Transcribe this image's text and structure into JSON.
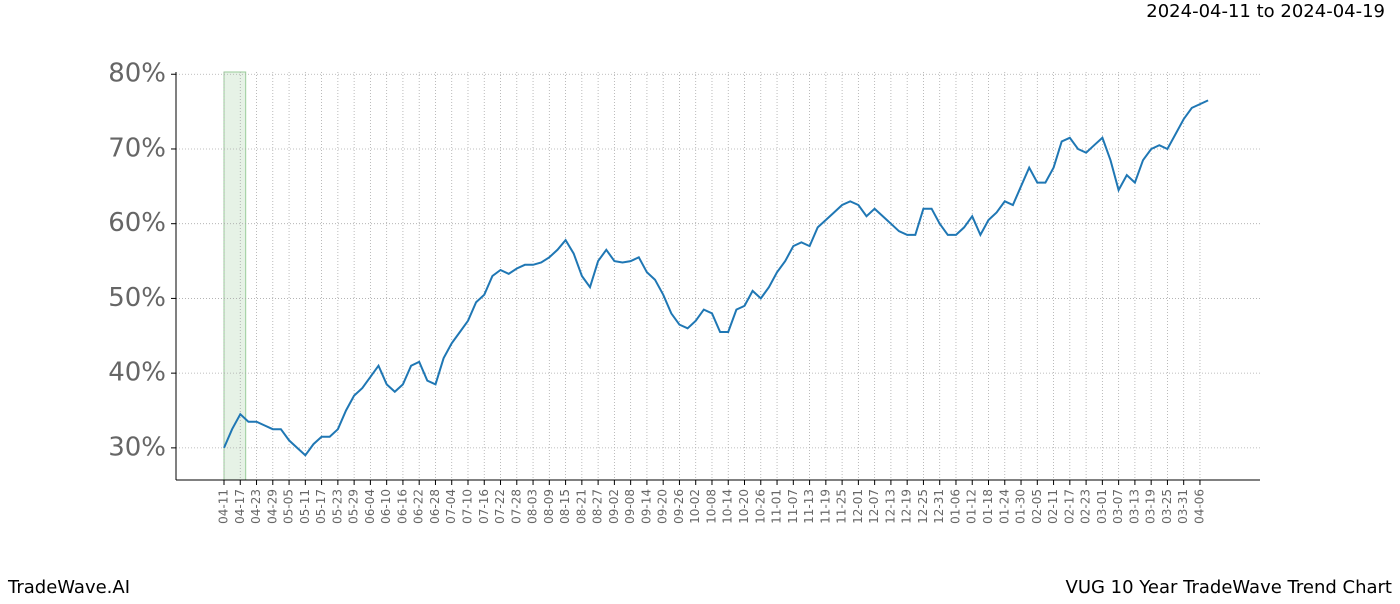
{
  "chart_data": {
    "type": "line",
    "title": "VUG 10 Year TradeWave Trend Chart",
    "subtitle": "2024-04-11 to 2024-04-19",
    "brand": "TradeWave.AI",
    "x": [
      "04-11",
      "04-14",
      "04-17",
      "04-20",
      "04-23",
      "04-26",
      "04-29",
      "05-02",
      "05-05",
      "05-08",
      "05-11",
      "05-14",
      "05-17",
      "05-20",
      "05-23",
      "05-26",
      "05-29",
      "06-01",
      "06-04",
      "06-07",
      "06-10",
      "06-13",
      "06-16",
      "06-19",
      "06-22",
      "06-25",
      "06-28",
      "07-01",
      "07-04",
      "07-07",
      "07-10",
      "07-13",
      "07-16",
      "07-19",
      "07-22",
      "07-25",
      "07-28",
      "07-31",
      "08-03",
      "08-06",
      "08-09",
      "08-12",
      "08-15",
      "08-18",
      "08-21",
      "08-24",
      "08-27",
      "08-30",
      "09-02",
      "09-05",
      "09-08",
      "09-11",
      "09-14",
      "09-17",
      "09-20",
      "09-23",
      "09-26",
      "09-29",
      "10-02",
      "10-05",
      "10-08",
      "10-11",
      "10-14",
      "10-17",
      "10-20",
      "10-23",
      "10-26",
      "10-29",
      "11-01",
      "11-04",
      "11-07",
      "11-10",
      "11-13",
      "11-16",
      "11-19",
      "11-22",
      "11-25",
      "11-28",
      "12-01",
      "12-04",
      "12-07",
      "12-10",
      "12-13",
      "12-16",
      "12-19",
      "12-22",
      "12-25",
      "12-28",
      "12-31",
      "01-03",
      "01-06",
      "01-09",
      "01-12",
      "01-15",
      "01-18",
      "01-21",
      "01-24",
      "01-27",
      "01-30",
      "02-02",
      "02-05",
      "02-08",
      "02-11",
      "02-14",
      "02-17",
      "02-20",
      "02-23",
      "02-26",
      "03-01",
      "03-04",
      "03-07",
      "03-10",
      "03-13",
      "03-16",
      "03-19",
      "03-22",
      "03-25",
      "03-28",
      "03-31",
      "04-03",
      "04-06",
      "04-09"
    ],
    "series": [
      {
        "color": "#1f77b4",
        "values": [
          30,
          32.5,
          34.5,
          33.5,
          33.5,
          33,
          32.5,
          32.5,
          31,
          30,
          29,
          30.5,
          31.5,
          31.5,
          32.5,
          35,
          37,
          38,
          39.5,
          41,
          38.5,
          37.5,
          38.5,
          41,
          41.5,
          39,
          38.5,
          42,
          44,
          45.5,
          47,
          49.5,
          50.5,
          53,
          53.8,
          53.3,
          54,
          54.5,
          54.5,
          54.8,
          55.5,
          56.5,
          57.8,
          56,
          53,
          51.5,
          55,
          56.5,
          55,
          54.8,
          55,
          55.5,
          53.5,
          52.5,
          50.5,
          48,
          46.5,
          46,
          47,
          48.5,
          48,
          45.5,
          45.5,
          48.5,
          49,
          51,
          50,
          51.5,
          53.5,
          55,
          57,
          57.5,
          57,
          59.5,
          60.5,
          61.5,
          62.5,
          63,
          62.5,
          61,
          62,
          61,
          60,
          59,
          58.5,
          58.5,
          62,
          62,
          60,
          58.5,
          58.5,
          59.5,
          61,
          58.5,
          60.5,
          61.5,
          63,
          62.5,
          65,
          67.5,
          65.5,
          65.5,
          67.5,
          71,
          71.5,
          70,
          69.5,
          70.5,
          71.5,
          68.5,
          64.5,
          66.5,
          65.5,
          68.5,
          70,
          70.5,
          70,
          72,
          74,
          75.5,
          76,
          76.5
        ]
      }
    ],
    "highlight": {
      "start": "04-11",
      "end": "04-19",
      "color": "#e6f2e6"
    },
    "ylim": [
      25.7,
      80.3
    ],
    "yticks": [
      {
        "value": 30,
        "label": "30%"
      },
      {
        "value": 40,
        "label": "40%"
      },
      {
        "value": 50,
        "label": "50%"
      },
      {
        "value": 60,
        "label": "60%"
      },
      {
        "value": 70,
        "label": "70%"
      },
      {
        "value": 80,
        "label": "80%"
      }
    ],
    "xticks": [
      "04-11",
      "04-17",
      "04-23",
      "04-29",
      "05-05",
      "05-11",
      "05-17",
      "05-23",
      "05-29",
      "06-04",
      "06-10",
      "06-16",
      "06-22",
      "06-28",
      "07-04",
      "07-10",
      "07-16",
      "07-22",
      "07-28",
      "08-03",
      "08-09",
      "08-15",
      "08-21",
      "08-27",
      "09-02",
      "09-08",
      "09-14",
      "09-20",
      "09-26",
      "10-02",
      "10-08",
      "10-14",
      "10-20",
      "10-26",
      "11-01",
      "11-07",
      "11-13",
      "11-19",
      "11-25",
      "12-01",
      "12-07",
      "12-13",
      "12-19",
      "12-25",
      "12-31",
      "01-06",
      "01-12",
      "01-18",
      "01-24",
      "01-30",
      "02-05",
      "02-11",
      "02-17",
      "02-23",
      "03-01",
      "03-07",
      "03-13",
      "03-19",
      "03-25",
      "03-31",
      "04-06"
    ],
    "grid": true
  }
}
